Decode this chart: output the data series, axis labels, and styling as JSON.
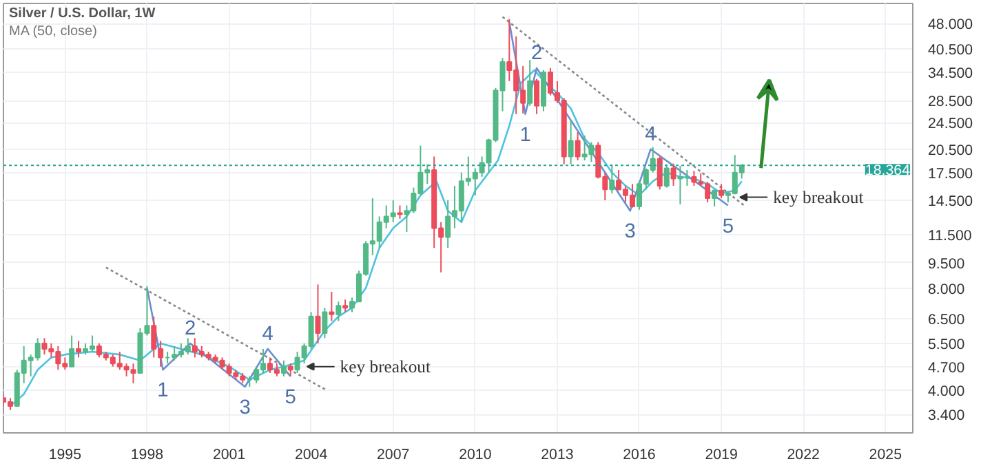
{
  "chart_data": {
    "type": "candlestick",
    "title": "Silver / U.S. Dollar, 1W",
    "subtitle": "MA (50, close)",
    "log": true,
    "grid": true,
    "ylim": [
      3.0,
      55
    ],
    "yticks": [
      {
        "value": 3.4,
        "label": "3.400"
      },
      {
        "value": 4.0,
        "label": "4.000"
      },
      {
        "value": 4.7,
        "label": "4.700"
      },
      {
        "value": 5.5,
        "label": "5.500"
      },
      {
        "value": 6.5,
        "label": "6.500"
      },
      {
        "value": 8.0,
        "label": "8.000"
      },
      {
        "value": 9.5,
        "label": "9.500"
      },
      {
        "value": 11.5,
        "label": "11.500"
      },
      {
        "value": 14.5,
        "label": "14.500"
      },
      {
        "value": 17.5,
        "label": "17.500"
      },
      {
        "value": 20.5,
        "label": "20.500"
      },
      {
        "value": 24.5,
        "label": "24.500"
      },
      {
        "value": 28.5,
        "label": "28.500"
      },
      {
        "value": 34.5,
        "label": "34.500"
      },
      {
        "value": 40.5,
        "label": "40.500"
      },
      {
        "value": 48.0,
        "label": "48.000"
      }
    ],
    "xlim": [
      "1992-10",
      "2026-01"
    ],
    "xticks": [
      "1995",
      "1998",
      "2001",
      "2004",
      "2007",
      "2010",
      "2013",
      "2016",
      "2019",
      "2022",
      "2025"
    ],
    "x": [
      "1992-10",
      "1993-01",
      "1993-04",
      "1993-07",
      "1993-10",
      "1994-01",
      "1994-04",
      "1994-07",
      "1994-10",
      "1995-01",
      "1995-04",
      "1995-07",
      "1995-10",
      "1996-01",
      "1996-04",
      "1996-07",
      "1996-10",
      "1997-01",
      "1997-04",
      "1997-07",
      "1997-10",
      "1998-01",
      "1998-04",
      "1998-07",
      "1998-10",
      "1999-01",
      "1999-04",
      "1999-07",
      "1999-10",
      "2000-01",
      "2000-04",
      "2000-07",
      "2000-10",
      "2001-01",
      "2001-04",
      "2001-07",
      "2001-10",
      "2002-01",
      "2002-04",
      "2002-07",
      "2002-10",
      "2003-01",
      "2003-04",
      "2003-07",
      "2003-10",
      "2004-01",
      "2004-04",
      "2004-07",
      "2004-10",
      "2005-01",
      "2005-04",
      "2005-07",
      "2005-10",
      "2006-01",
      "2006-04",
      "2006-07",
      "2006-10",
      "2007-01",
      "2007-04",
      "2007-07",
      "2007-10",
      "2008-01",
      "2008-04",
      "2008-07",
      "2008-10",
      "2009-01",
      "2009-04",
      "2009-07",
      "2009-10",
      "2010-01",
      "2010-04",
      "2010-07",
      "2010-10",
      "2011-01",
      "2011-04",
      "2011-07",
      "2011-10",
      "2012-01",
      "2012-04",
      "2012-07",
      "2012-10",
      "2013-01",
      "2013-04",
      "2013-07",
      "2013-10",
      "2014-01",
      "2014-04",
      "2014-07",
      "2014-10",
      "2015-01",
      "2015-04",
      "2015-07",
      "2015-10",
      "2016-01",
      "2016-04",
      "2016-07",
      "2016-10",
      "2017-01",
      "2017-04",
      "2017-07",
      "2017-10",
      "2018-01",
      "2018-04",
      "2018-07",
      "2018-10",
      "2019-01",
      "2019-04",
      "2019-07",
      "2019-10"
    ],
    "ohlc": [
      [
        3.8,
        3.9,
        3.6,
        3.7
      ],
      [
        3.7,
        3.8,
        3.5,
        3.6
      ],
      [
        3.6,
        4.6,
        3.6,
        4.5
      ],
      [
        4.5,
        5.4,
        4.2,
        4.9
      ],
      [
        4.9,
        5.1,
        4.4,
        5.0
      ],
      [
        5.0,
        5.7,
        4.9,
        5.5
      ],
      [
        5.5,
        5.7,
        5.1,
        5.3
      ],
      [
        5.3,
        5.5,
        5.0,
        5.2
      ],
      [
        5.2,
        5.4,
        4.6,
        4.8
      ],
      [
        4.8,
        5.0,
        4.6,
        4.7
      ],
      [
        4.7,
        5.8,
        4.7,
        5.3
      ],
      [
        5.3,
        5.6,
        5.0,
        5.2
      ],
      [
        5.2,
        5.5,
        5.1,
        5.3
      ],
      [
        5.3,
        5.8,
        5.2,
        5.4
      ],
      [
        5.4,
        5.5,
        5.0,
        5.1
      ],
      [
        5.1,
        5.2,
        4.9,
        5.0
      ],
      [
        5.0,
        5.1,
        4.7,
        4.8
      ],
      [
        4.8,
        5.2,
        4.6,
        4.7
      ],
      [
        4.7,
        4.8,
        4.4,
        4.6
      ],
      [
        4.6,
        4.8,
        4.2,
        4.5
      ],
      [
        4.5,
        6.1,
        4.5,
        5.9
      ],
      [
        5.9,
        8.1,
        5.8,
        6.2
      ],
      [
        6.2,
        6.6,
        5.0,
        5.3
      ],
      [
        5.3,
        5.6,
        4.7,
        5.0
      ],
      [
        5.0,
        5.2,
        4.8,
        5.0
      ],
      [
        5.0,
        5.4,
        4.9,
        5.1
      ],
      [
        5.1,
        5.5,
        5.0,
        5.2
      ],
      [
        5.2,
        5.7,
        5.1,
        5.4
      ],
      [
        5.4,
        5.7,
        5.0,
        5.2
      ],
      [
        5.2,
        5.4,
        5.0,
        5.1
      ],
      [
        5.1,
        5.2,
        4.9,
        5.0
      ],
      [
        5.0,
        5.1,
        4.8,
        4.9
      ],
      [
        4.9,
        5.0,
        4.6,
        4.7
      ],
      [
        4.7,
        4.8,
        4.4,
        4.5
      ],
      [
        4.5,
        4.6,
        4.3,
        4.4
      ],
      [
        4.4,
        4.5,
        4.2,
        4.3
      ],
      [
        4.3,
        4.4,
        4.1,
        4.3
      ],
      [
        4.3,
        4.7,
        4.2,
        4.6
      ],
      [
        4.6,
        5.3,
        4.5,
        4.8
      ],
      [
        4.8,
        5.0,
        4.5,
        4.6
      ],
      [
        4.6,
        4.8,
        4.4,
        4.5
      ],
      [
        4.5,
        4.9,
        4.4,
        4.7
      ],
      [
        4.7,
        4.8,
        4.4,
        4.6
      ],
      [
        4.6,
        5.2,
        4.5,
        5.0
      ],
      [
        5.0,
        5.5,
        4.8,
        5.4
      ],
      [
        5.4,
        6.8,
        5.3,
        6.6
      ],
      [
        6.6,
        8.2,
        5.5,
        5.9
      ],
      [
        5.9,
        7.0,
        5.7,
        6.8
      ],
      [
        6.8,
        7.8,
        6.4,
        6.7
      ],
      [
        6.7,
        7.3,
        6.4,
        7.1
      ],
      [
        7.1,
        7.4,
        6.8,
        7.0
      ],
      [
        7.0,
        7.5,
        6.8,
        7.3
      ],
      [
        7.3,
        9.0,
        7.3,
        8.8
      ],
      [
        8.8,
        11.0,
        8.7,
        10.8
      ],
      [
        10.8,
        14.7,
        10.0,
        11.0
      ],
      [
        11.0,
        13.0,
        10.5,
        12.5
      ],
      [
        12.5,
        14.0,
        12.0,
        13.0
      ],
      [
        13.0,
        14.5,
        12.5,
        13.3
      ],
      [
        13.3,
        14.0,
        12.8,
        13.2
      ],
      [
        13.2,
        14.0,
        11.7,
        13.5
      ],
      [
        13.5,
        15.8,
        13.3,
        15.2
      ],
      [
        15.2,
        21.0,
        15.0,
        17.5
      ],
      [
        17.5,
        18.5,
        16.2,
        17.8
      ],
      [
        17.8,
        19.5,
        10.5,
        12.0
      ],
      [
        12.0,
        12.5,
        8.9,
        11.3
      ],
      [
        11.3,
        14.5,
        10.5,
        13.0
      ],
      [
        13.0,
        16.0,
        12.0,
        13.5
      ],
      [
        13.5,
        17.5,
        12.5,
        16.5
      ],
      [
        16.5,
        19.5,
        16.0,
        16.8
      ],
      [
        16.8,
        18.0,
        15.0,
        17.5
      ],
      [
        17.5,
        19.5,
        17.0,
        18.7
      ],
      [
        18.7,
        22.0,
        17.5,
        21.8
      ],
      [
        21.8,
        31.0,
        21.5,
        30.5
      ],
      [
        30.5,
        38.0,
        26.5,
        37.0
      ],
      [
        37.0,
        49.5,
        32.5,
        35.0
      ],
      [
        35.0,
        44.0,
        26.0,
        30.5
      ],
      [
        30.5,
        36.0,
        26.1,
        28.0
      ],
      [
        28.0,
        37.5,
        27.5,
        32.5
      ],
      [
        32.5,
        33.0,
        26.0,
        27.5
      ],
      [
        27.5,
        35.0,
        26.5,
        34.5
      ],
      [
        34.5,
        35.5,
        29.5,
        30.0
      ],
      [
        30.0,
        32.5,
        28.0,
        28.5
      ],
      [
        28.5,
        29.0,
        18.5,
        19.5
      ],
      [
        19.5,
        25.0,
        18.5,
        21.7
      ],
      [
        21.7,
        23.0,
        19.0,
        19.5
      ],
      [
        19.5,
        22.5,
        19.0,
        19.8
      ],
      [
        19.8,
        21.5,
        18.8,
        21.0
      ],
      [
        21.0,
        21.5,
        16.8,
        17.0
      ],
      [
        17.0,
        17.5,
        14.5,
        15.6
      ],
      [
        15.6,
        18.5,
        15.2,
        16.6
      ],
      [
        16.6,
        17.8,
        15.5,
        15.6
      ],
      [
        15.6,
        16.0,
        14.3,
        15.0
      ],
      [
        15.0,
        16.2,
        13.8,
        13.9
      ],
      [
        13.9,
        16.5,
        13.6,
        16.2
      ],
      [
        16.2,
        18.0,
        15.6,
        17.8
      ],
      [
        17.8,
        20.8,
        17.5,
        19.2
      ],
      [
        19.2,
        19.5,
        15.6,
        16.0
      ],
      [
        16.0,
        18.5,
        15.8,
        18.0
      ],
      [
        18.0,
        18.6,
        16.0,
        16.8
      ],
      [
        16.8,
        18.3,
        14.1,
        17.0
      ],
      [
        17.0,
        17.8,
        16.0,
        17.0
      ],
      [
        17.0,
        17.7,
        16.0,
        16.4
      ],
      [
        16.4,
        17.4,
        16.0,
        16.2
      ],
      [
        16.2,
        16.4,
        14.3,
        14.7
      ],
      [
        14.7,
        15.6,
        13.9,
        15.5
      ],
      [
        15.5,
        16.2,
        14.7,
        15.0
      ],
      [
        15.0,
        15.4,
        14.3,
        15.2
      ],
      [
        15.2,
        19.7,
        15.1,
        17.5
      ],
      [
        17.5,
        18.5,
        16.8,
        18.364
      ]
    ],
    "colors": [
      "#eb4d5c",
      "#eb4d5c",
      "#53b987",
      "#53b987",
      "#53b987",
      "#53b987",
      "#eb4d5c",
      "#eb4d5c",
      "#eb4d5c",
      "#eb4d5c",
      "#53b987",
      "#eb4d5c",
      "#53b987",
      "#53b987",
      "#eb4d5c",
      "#eb4d5c",
      "#eb4d5c",
      "#eb4d5c",
      "#eb4d5c",
      "#eb4d5c",
      "#53b987",
      "#53b987",
      "#eb4d5c",
      "#eb4d5c",
      "#53b987",
      "#53b987",
      "#53b987",
      "#53b987",
      "#eb4d5c",
      "#eb4d5c",
      "#eb4d5c",
      "#eb4d5c",
      "#eb4d5c",
      "#eb4d5c",
      "#eb4d5c",
      "#eb4d5c",
      "#53b987",
      "#53b987",
      "#53b987",
      "#eb4d5c",
      "#eb4d5c",
      "#53b987",
      "#eb4d5c",
      "#53b987",
      "#53b987",
      "#53b987",
      "#eb4d5c",
      "#53b987",
      "#eb4d5c",
      "#53b987",
      "#eb4d5c",
      "#53b987",
      "#53b987",
      "#53b987",
      "#53b987",
      "#53b987",
      "#53b987",
      "#53b987",
      "#eb4d5c",
      "#53b987",
      "#53b987",
      "#53b987",
      "#53b987",
      "#eb4d5c",
      "#eb4d5c",
      "#53b987",
      "#53b987",
      "#53b987",
      "#53b987",
      "#53b987",
      "#53b987",
      "#53b987",
      "#53b987",
      "#53b987",
      "#eb4d5c",
      "#eb4d5c",
      "#eb4d5c",
      "#53b987",
      "#eb4d5c",
      "#53b987",
      "#eb4d5c",
      "#eb4d5c",
      "#eb4d5c",
      "#53b987",
      "#eb4d5c",
      "#53b987",
      "#53b987",
      "#eb4d5c",
      "#eb4d5c",
      "#53b987",
      "#eb4d5c",
      "#eb4d5c",
      "#eb4d5c",
      "#53b987",
      "#53b987",
      "#53b987",
      "#eb4d5c",
      "#53b987",
      "#eb4d5c",
      "#53b987",
      "#53b987",
      "#eb4d5c",
      "#eb4d5c",
      "#eb4d5c",
      "#53b987",
      "#eb4d5c",
      "#53b987",
      "#53b987",
      "#53b987"
    ],
    "series": [
      {
        "type": "line",
        "color": "#4dc3e0",
        "x": [
          "1993-01",
          "1993-07",
          "1994-01",
          "1994-07",
          "1995-01",
          "1996-01",
          "1997-01",
          "1997-10",
          "1998-07",
          "1999-04",
          "2000-01",
          "2001-01",
          "2001-10",
          "2002-07",
          "2003-01",
          "2003-10",
          "2004-07",
          "2005-01",
          "2005-07",
          "2006-01",
          "2006-07",
          "2007-01",
          "2007-07",
          "2008-01",
          "2008-08",
          "2009-01",
          "2009-07",
          "2010-01",
          "2010-07",
          "2010-11",
          "2011-04",
          "2011-09",
          "2012-03",
          "2012-08",
          "2013-01",
          "2013-07",
          "2014-01",
          "2014-07",
          "2015-01",
          "2015-07",
          "2016-01",
          "2016-07",
          "2017-01",
          "2017-07",
          "2018-01",
          "2018-07",
          "2019-01",
          "2019-07",
          "2019-10"
        ],
        "values": [
          3.6,
          3.9,
          4.6,
          5.0,
          5.1,
          5.2,
          5.1,
          4.9,
          5.5,
          5.3,
          5.1,
          4.7,
          4.3,
          4.6,
          4.7,
          4.9,
          6.0,
          6.6,
          7.0,
          8.0,
          10.5,
          12.0,
          13.0,
          15.0,
          16.5,
          13.5,
          12.5,
          15.5,
          17.5,
          19.0,
          24.0,
          32.0,
          35.0,
          32.0,
          30.0,
          27.0,
          22.0,
          20.0,
          17.5,
          16.0,
          15.0,
          16.5,
          17.5,
          17.0,
          16.8,
          16.2,
          15.2,
          15.5,
          16.5
        ]
      },
      {
        "type": "line",
        "color": "#888888",
        "line_style": "dotted",
        "x": [
          "1996-07",
          "2004-08"
        ],
        "values": [
          9.2,
          4.0
        ]
      },
      {
        "type": "line",
        "color": "#888888",
        "line_style": "dotted",
        "x": [
          "2011-01",
          "2019-11"
        ],
        "values": [
          50.2,
          14.0
        ]
      },
      {
        "type": "line",
        "color": "#6b8fd0",
        "x": [
          "1998-01",
          "1998-08",
          "1999-08",
          "2001-08",
          "2002-06",
          "2003-04"
        ],
        "values": [
          8.0,
          4.6,
          5.5,
          4.1,
          5.3,
          4.4
        ]
      },
      {
        "type": "line",
        "color": "#6b8fd0",
        "x": [
          "2011-04",
          "2011-11",
          "2012-04",
          "2015-09",
          "2016-06",
          "2019-04"
        ],
        "values": [
          48.5,
          26.0,
          35.5,
          13.5,
          20.5,
          14.0
        ]
      }
    ],
    "ref_lines": [
      {
        "axis": "y",
        "value": 18.364,
        "label": "18.364",
        "color": "#26a69a",
        "line_style": "dotted"
      }
    ],
    "annotations": [
      {
        "text": "1",
        "x": "1998-08",
        "y": 4.6
      },
      {
        "text": "2",
        "x": "1999-08",
        "y": 5.5
      },
      {
        "text": "3",
        "x": "2001-08",
        "y": 4.1
      },
      {
        "text": "4",
        "x": "2002-06",
        "y": 5.3
      },
      {
        "text": "5",
        "x": "2003-04",
        "y": 4.4
      },
      {
        "text": "key breakout",
        "x": "2003-10",
        "y": 4.7
      },
      {
        "text": "1",
        "x": "2011-11",
        "y": 26.0
      },
      {
        "text": "2",
        "x": "2012-04",
        "y": 35.5
      },
      {
        "text": "3",
        "x": "2015-09",
        "y": 13.5
      },
      {
        "text": "4",
        "x": "2016-06",
        "y": 20.5
      },
      {
        "text": "5",
        "x": "2019-04",
        "y": 14.0
      },
      {
        "text": "key breakout",
        "x": "2019-08",
        "y": 14.8
      }
    ]
  }
}
